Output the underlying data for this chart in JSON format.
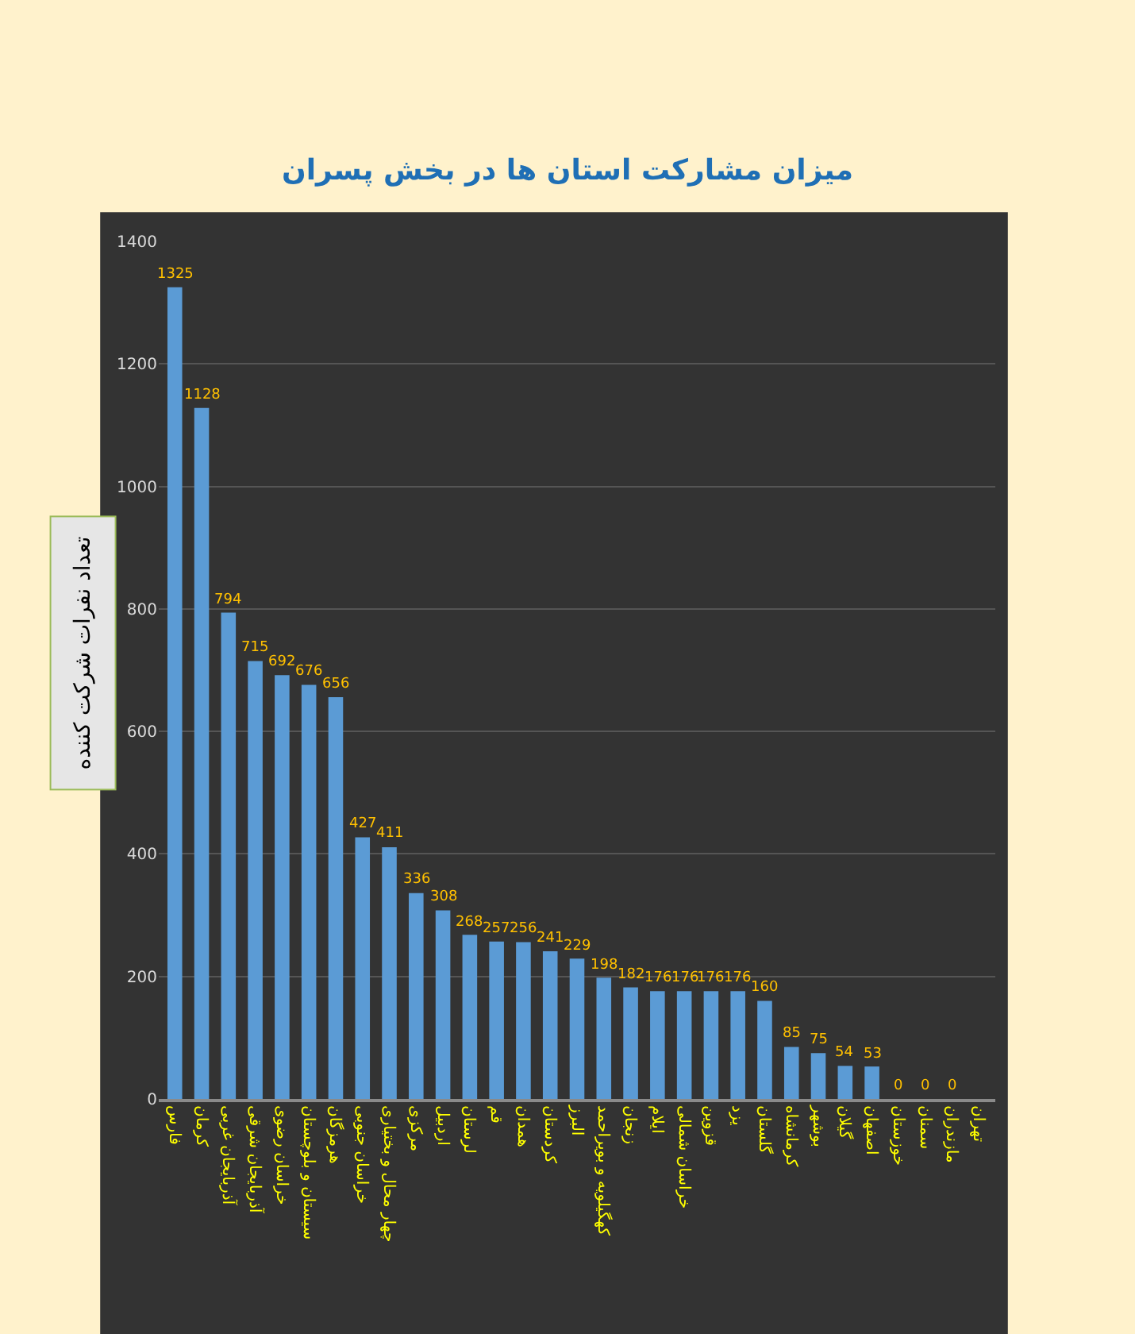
{
  "chart_data": {
    "type": "bar",
    "title": "میزان مشارکت استان ها در بخش پسران",
    "ylabel": "تعداد نفرات شرکت کننده",
    "categories": [
      "فارس",
      "کرمان",
      "آذربایجان غربی",
      "آذربایجان شرقی",
      "خراسان رضوی",
      "سیستان و بلوچستان",
      "هرمزگان",
      "خراسان جنوبی",
      "چهار محال و بختیاری",
      "مرکزی",
      "اردبیل",
      "لرستان",
      "قم",
      "همدان",
      "کردستان",
      "البرز",
      "کهگیلویه و بویراحمد",
      "زنجان",
      "ایلام",
      "خراسان شمالی",
      "قزوین",
      "یزد",
      "گلستان",
      "کرمانشاه",
      "بوشهر",
      "گیلان",
      "اصفهان",
      "خوزستان",
      "سمنان",
      "مازندران",
      "تهران"
    ],
    "values": [
      1325,
      1128,
      794,
      715,
      692,
      676,
      656,
      427,
      411,
      336,
      308,
      268,
      257,
      256,
      241,
      229,
      198,
      182,
      176,
      176,
      176,
      176,
      160,
      85,
      75,
      54,
      53,
      0,
      0,
      0,
      null
    ],
    "color": "#5b9bd5",
    "data_labels": true,
    "ylim": [
      0,
      1400
    ],
    "yticks": [
      0,
      200,
      400,
      600,
      800,
      1000,
      1200,
      1400
    ],
    "grid": "y",
    "legend": false
  }
}
